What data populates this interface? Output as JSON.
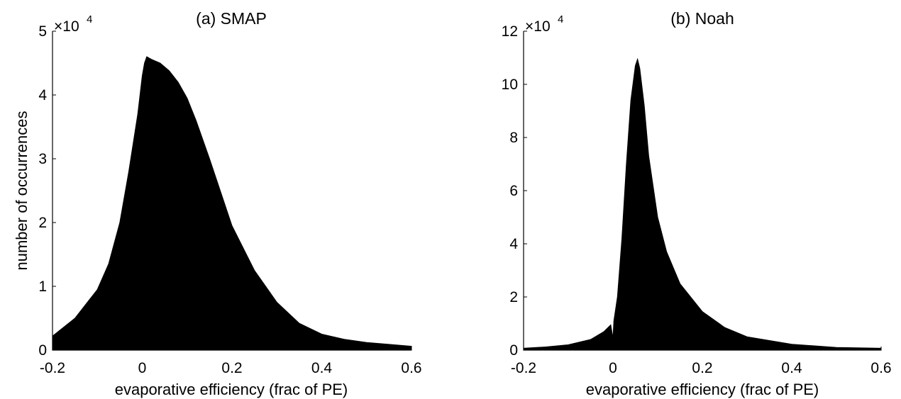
{
  "figure": {
    "panels": [
      {
        "id": "a",
        "title": "(a) SMAP",
        "ylabel": "number of occurrences",
        "xlabel": "evaporative efficiency (frac of PE)",
        "y_multiplier": "×10",
        "y_exponent": "4"
      },
      {
        "id": "b",
        "title": "(b) Noah",
        "ylabel": "",
        "xlabel": "evaporative efficiency (frac of PE)",
        "y_multiplier": "×10",
        "y_exponent": "4"
      }
    ]
  },
  "chart_data": [
    {
      "type": "area",
      "title": "(a) SMAP",
      "xlabel": "evaporative efficiency (frac of PE)",
      "ylabel": "number of occurrences",
      "y_scale_label": "×10^4",
      "xlim": [
        -0.2,
        0.6
      ],
      "ylim": [
        0,
        5
      ],
      "xticks": [
        "-0.2",
        "0",
        "0.2",
        "0.4",
        "0.6"
      ],
      "yticks": [
        "0",
        "1",
        "2",
        "3",
        "4",
        "5"
      ],
      "x": [
        -0.2,
        -0.15,
        -0.1,
        -0.075,
        -0.05,
        -0.03,
        -0.01,
        0.0,
        0.005,
        0.01,
        0.02,
        0.04,
        0.06,
        0.08,
        0.1,
        0.12,
        0.15,
        0.2,
        0.25,
        0.3,
        0.35,
        0.4,
        0.45,
        0.5,
        0.55,
        0.6
      ],
      "y": [
        0.22,
        0.5,
        0.95,
        1.35,
        2.0,
        2.8,
        3.7,
        4.3,
        4.5,
        4.6,
        4.56,
        4.5,
        4.38,
        4.2,
        3.95,
        3.6,
        3.0,
        1.95,
        1.25,
        0.75,
        0.42,
        0.25,
        0.17,
        0.12,
        0.09,
        0.06
      ]
    },
    {
      "type": "area",
      "title": "(b) Noah",
      "xlabel": "evaporative efficiency (frac of PE)",
      "ylabel": "",
      "y_scale_label": "×10^4",
      "xlim": [
        -0.2,
        0.6
      ],
      "ylim": [
        0,
        12
      ],
      "xticks": [
        "-0.2",
        "0",
        "0.2",
        "0.4",
        "0.6"
      ],
      "yticks": [
        "0",
        "2",
        "4",
        "6",
        "8",
        "10",
        "12"
      ],
      "x": [
        -0.2,
        -0.15,
        -0.1,
        -0.05,
        -0.02,
        -0.005,
        0.0,
        0.002,
        0.01,
        0.02,
        0.03,
        0.04,
        0.05,
        0.055,
        0.06,
        0.07,
        0.08,
        0.1,
        0.12,
        0.15,
        0.2,
        0.25,
        0.3,
        0.4,
        0.5,
        0.6
      ],
      "y": [
        0.07,
        0.12,
        0.2,
        0.4,
        0.7,
        0.95,
        0.45,
        1.1,
        2.0,
        4.2,
        7.0,
        9.4,
        10.7,
        10.95,
        10.6,
        9.2,
        7.3,
        5.0,
        3.7,
        2.5,
        1.45,
        0.85,
        0.5,
        0.22,
        0.1,
        0.07
      ]
    }
  ]
}
